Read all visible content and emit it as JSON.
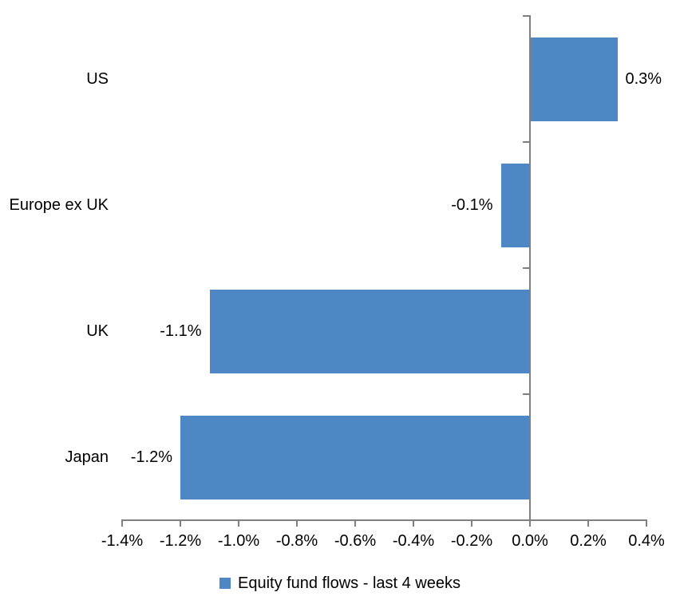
{
  "chart_data": {
    "type": "bar",
    "orientation": "horizontal",
    "title": "",
    "xlabel": "",
    "ylabel": "",
    "categories": [
      "US",
      "Europe ex UK",
      "UK",
      "Japan"
    ],
    "series": [
      {
        "name": "Equity fund flows - last 4 weeks",
        "values": [
          0.3,
          -0.1,
          -1.1,
          -1.2
        ],
        "value_labels": [
          "0.3%",
          "-0.1%",
          "-1.1%",
          "-1.2%"
        ]
      }
    ],
    "xlim": [
      -1.4,
      0.4
    ],
    "x_ticks": [
      -1.4,
      -1.2,
      -1.0,
      -0.8,
      -0.6,
      -0.4,
      -0.2,
      0.0,
      0.2,
      0.4
    ],
    "x_tick_labels": [
      "-1.4%",
      "-1.2%",
      "-1.0%",
      "-0.8%",
      "-0.6%",
      "-0.4%",
      "-0.2%",
      "0.0%",
      "0.2%",
      "0.4%"
    ],
    "grid": false,
    "legend_position": "bottom",
    "bar_color": "#4E88C4",
    "axis_color": "#7F7F7F",
    "text_color": "#000000",
    "background": "#FFFFFF"
  },
  "legend": {
    "label": "Equity fund flows - last 4 weeks"
  }
}
